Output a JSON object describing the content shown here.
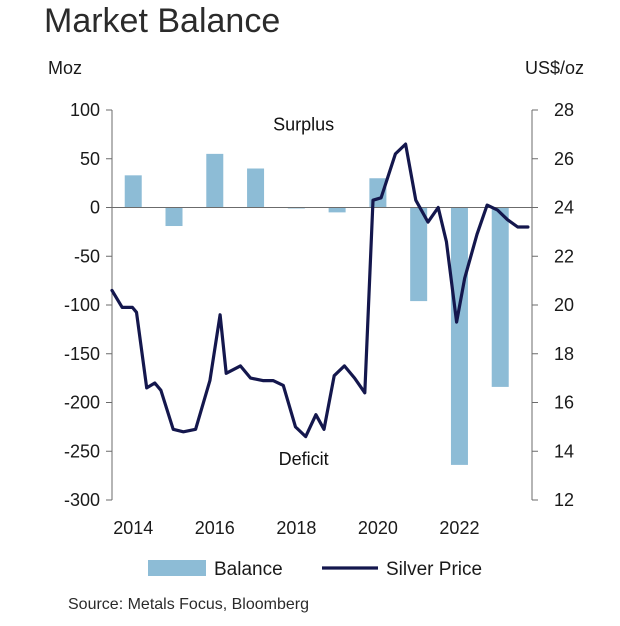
{
  "title": "Market Balance",
  "source": "Source: Metals Focus, Bloomberg",
  "colors": {
    "balance_bar": "#8dbcd6",
    "silver_line": "#14174d",
    "axis": "#6b6b6b"
  },
  "chart_data": {
    "type": "bar",
    "title": "Market Balance",
    "y_left_unit": "Moz",
    "y_right_unit": "US$/oz",
    "ylim_left": [
      -300,
      100
    ],
    "ylim_right": [
      12,
      28
    ],
    "left_ticks": [
      100,
      50,
      0,
      -50,
      -100,
      -150,
      -200,
      -250,
      -300
    ],
    "left_tick_labels": [
      "100",
      "50",
      "0",
      "-50",
      "-100",
      "-150",
      "-200",
      "-250",
      "-300"
    ],
    "right_ticks": [
      28,
      26,
      24,
      22,
      20,
      18,
      16,
      14,
      12
    ],
    "right_tick_labels": [
      "28",
      "26",
      "24",
      "22",
      "20",
      "18",
      "16",
      "14",
      "12"
    ],
    "xlim": [
      2013.7,
      2024.0
    ],
    "x_ticks": [
      2014,
      2016,
      2018,
      2020,
      2022
    ],
    "x_tick_labels": [
      "2014",
      "2016",
      "2018",
      "2020",
      "2022"
    ],
    "annotations": [
      {
        "text": "Surplus",
        "x": 2018.4,
        "y": 85
      },
      {
        "text": "Deficit",
        "x": 2018.4,
        "y": -258
      }
    ],
    "legend": {
      "placement": "bottom",
      "entries": [
        {
          "label": "Balance",
          "kind": "bar"
        },
        {
          "label": "Silver Price",
          "kind": "line"
        }
      ]
    },
    "series": [
      {
        "name": "Balance",
        "type": "bar",
        "axis": "left",
        "categories": [
          "2014",
          "2015",
          "2016",
          "2017",
          "2018",
          "2019",
          "2020",
          "2021",
          "2022",
          "2023"
        ],
        "x": [
          2014,
          2015,
          2016,
          2017,
          2018,
          2019,
          2020,
          2021,
          2022,
          2023
        ],
        "values": [
          33,
          -19,
          55,
          40,
          -1,
          -5,
          30,
          -96,
          -264,
          -184
        ]
      },
      {
        "name": "Silver Price",
        "type": "line",
        "axis": "right",
        "x": [
          2013.7,
          2013.95,
          2014.2,
          2014.3,
          2014.55,
          2014.75,
          2014.9,
          2015.2,
          2015.45,
          2015.75,
          2016.1,
          2016.35,
          2016.5,
          2016.85,
          2017.1,
          2017.4,
          2017.65,
          2017.9,
          2018.2,
          2018.45,
          2018.7,
          2018.9,
          2019.15,
          2019.4,
          2019.65,
          2019.9,
          2020.1,
          2020.3,
          2020.65,
          2020.9,
          2021.15,
          2021.45,
          2021.7,
          2021.9,
          2022.15,
          2022.35,
          2022.65,
          2022.9,
          2023.15,
          2023.4,
          2023.65,
          2023.9
        ],
        "values": [
          20.6,
          19.9,
          19.9,
          19.7,
          16.6,
          16.8,
          16.5,
          14.9,
          14.8,
          14.9,
          16.9,
          19.6,
          17.2,
          17.5,
          17.0,
          16.9,
          16.9,
          16.7,
          15.0,
          14.6,
          15.5,
          14.9,
          17.1,
          17.5,
          17.0,
          16.4,
          24.3,
          24.4,
          26.2,
          26.6,
          24.3,
          23.4,
          24.0,
          22.6,
          19.3,
          21.1,
          22.9,
          24.1,
          23.9,
          23.5,
          23.2,
          23.2
        ]
      }
    ]
  }
}
